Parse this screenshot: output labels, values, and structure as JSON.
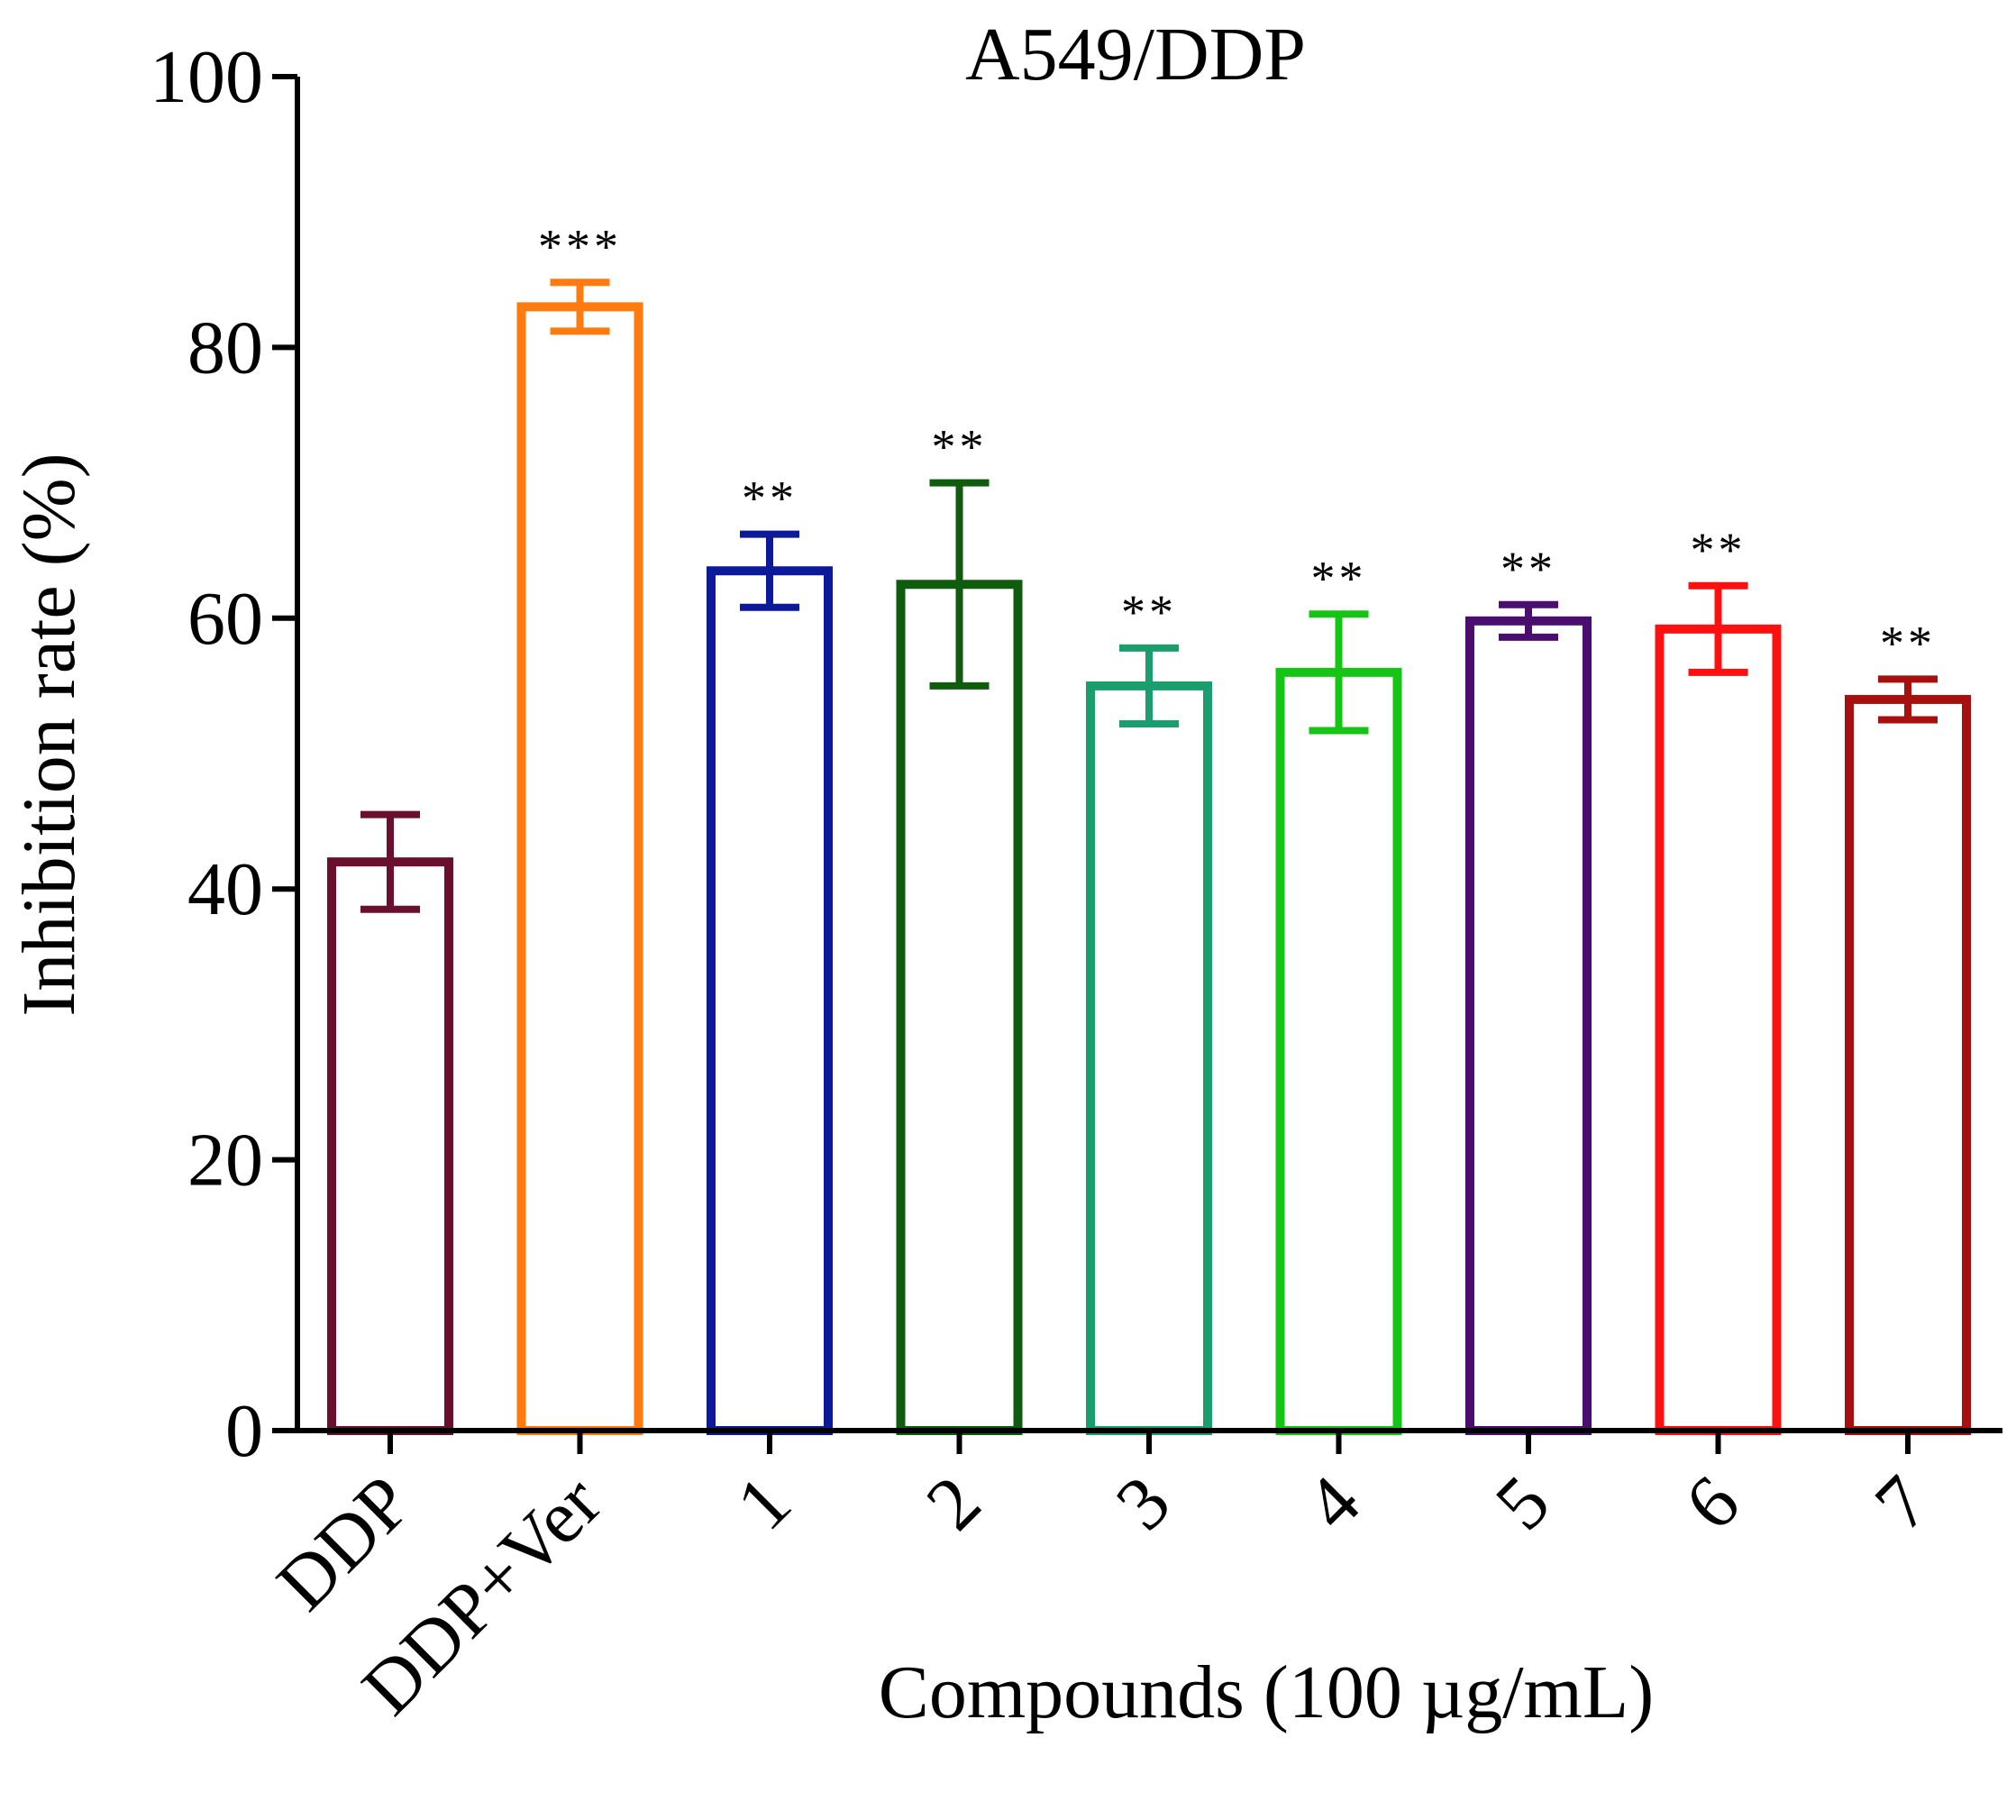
{
  "chart_data": {
    "type": "bar",
    "title": "A549/DDP",
    "xlabel": "Compounds (100 µg/mL)",
    "ylabel": "Inhibition rate (%)",
    "ylim": [
      0,
      100
    ],
    "yticks": [
      "0",
      "20",
      "40",
      "60",
      "80",
      "100"
    ],
    "categories": [
      "DDP",
      "DDP+Ver",
      "1",
      "2",
      "3",
      "4",
      "5",
      "6",
      "7"
    ],
    "values": [
      42,
      83,
      63.5,
      62.5,
      55,
      56,
      59.8,
      59.2,
      54
    ],
    "errors": [
      3.5,
      1.8,
      2.7,
      7.5,
      2.8,
      4.3,
      1.2,
      3.2,
      1.5
    ],
    "significance": [
      "",
      "***",
      "**",
      "**",
      "**",
      "**",
      "**",
      "**",
      "**"
    ],
    "colors": [
      "#6b0f2e",
      "#ff7a0f",
      "#0c1a99",
      "#0f5c0f",
      "#1a9e6e",
      "#16c416",
      "#4a0f6e",
      "#ff1010",
      "#a80f0f"
    ],
    "grid": false,
    "bar_fill": "#ffffff"
  }
}
